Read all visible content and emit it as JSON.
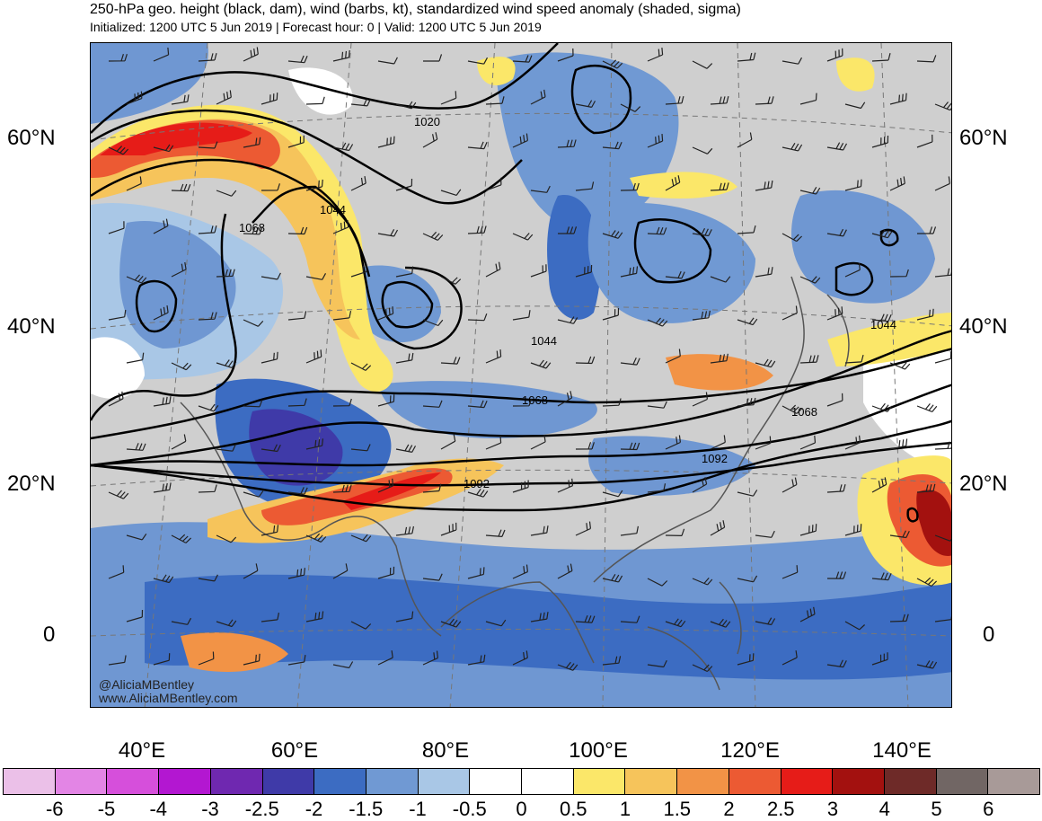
{
  "header": {
    "title": "250-hPa geo. height (black, dam), wind (barbs, kt), standardized wind speed anomaly (shaded, sigma)",
    "subtitle": "Initialized: 1200 UTC 5 Jun 2019 | Forecast hour: 0 | Valid: 1200 UTC 5 Jun 2019"
  },
  "map": {
    "lat_labels": [
      "60°N",
      "40°N",
      "20°N",
      "0"
    ],
    "lon_labels": [
      "40°E",
      "60°E",
      "80°E",
      "100°E",
      "120°E",
      "140°E"
    ],
    "contour_labels": [
      "1020",
      "1044",
      "1068",
      "1044",
      "1068",
      "1092",
      "1044",
      "1068",
      "1092"
    ],
    "watermark": [
      "@AliciaMBentley",
      "www.AliciaMBentley.com"
    ]
  },
  "colorbar": {
    "labels": [
      "-6",
      "-5",
      "-4",
      "-3",
      "-2.5",
      "-2",
      "-1.5",
      "-1",
      "-0.5",
      "0",
      "0.5",
      "1",
      "1.5",
      "2",
      "2.5",
      "3",
      "4",
      "5",
      "6"
    ],
    "colors": [
      "#ebc0e8",
      "#e385e5",
      "#d64fdb",
      "#b317d1",
      "#6f28b0",
      "#3f3aa8",
      "#3c6cc2",
      "#7099d3",
      "#a9c7e6",
      "#ffffff",
      "#ffffff",
      "#fbe769",
      "#f6c45b",
      "#f29346",
      "#ec5a33",
      "#e61c18",
      "#a3110f",
      "#6e2a28",
      "#716664",
      "#a89a98"
    ]
  }
}
